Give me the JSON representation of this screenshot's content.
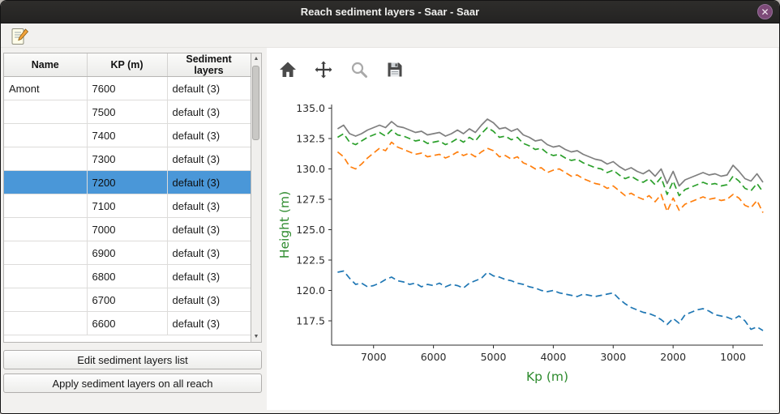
{
  "window": {
    "title": "Reach sediment layers - Saar - Saar",
    "close_glyph": "✕"
  },
  "icons": {
    "edit": "note-pencil",
    "home": "home",
    "pan": "move-arrows",
    "zoom": "magnifier",
    "save": "floppy-disk",
    "scroll_up": "▲",
    "scroll_down": "▼"
  },
  "table": {
    "headers": [
      "Name",
      "KP (m)",
      "Sediment layers"
    ],
    "selected_index": 4,
    "rows": [
      {
        "name": "Amont",
        "kp": "7600",
        "layers": "default (3)"
      },
      {
        "name": "",
        "kp": "7500",
        "layers": "default (3)"
      },
      {
        "name": "",
        "kp": "7400",
        "layers": "default (3)"
      },
      {
        "name": "",
        "kp": "7300",
        "layers": "default (3)"
      },
      {
        "name": "",
        "kp": "7200",
        "layers": "default (3)"
      },
      {
        "name": "",
        "kp": "7100",
        "layers": "default (3)"
      },
      {
        "name": "",
        "kp": "7000",
        "layers": "default (3)"
      },
      {
        "name": "",
        "kp": "6900",
        "layers": "default (3)"
      },
      {
        "name": "",
        "kp": "6800",
        "layers": "default (3)"
      },
      {
        "name": "",
        "kp": "6700",
        "layers": "default (3)"
      },
      {
        "name": "",
        "kp": "6600",
        "layers": "default (3)"
      }
    ]
  },
  "buttons": {
    "edit": "Edit sediment layers list",
    "apply": "Apply sediment layers on all reach"
  },
  "chart_data": {
    "type": "line",
    "title": "",
    "xlabel": "Kp (m)",
    "ylabel": "Height (m)",
    "axis_label_color": "#2e8b2e",
    "tick_color": "#2b2b2b",
    "x_axis_reversed": true,
    "xlim": [
      7700,
      500
    ],
    "ylim": [
      115.5,
      135.3
    ],
    "xticks": [
      7000,
      6000,
      5000,
      4000,
      3000,
      2000,
      1000
    ],
    "yticks": [
      117.5,
      120.0,
      122.5,
      125.0,
      127.5,
      130.0,
      132.5,
      135.0
    ],
    "grid": false,
    "legend": false,
    "x": [
      7600,
      7500,
      7400,
      7300,
      7200,
      7100,
      7000,
      6900,
      6800,
      6700,
      6600,
      6500,
      6400,
      6300,
      6200,
      6100,
      6000,
      5900,
      5800,
      5700,
      5600,
      5500,
      5400,
      5300,
      5200,
      5100,
      5000,
      4900,
      4800,
      4700,
      4600,
      4500,
      4400,
      4300,
      4200,
      4100,
      4000,
      3900,
      3800,
      3700,
      3600,
      3500,
      3400,
      3300,
      3200,
      3100,
      3000,
      2900,
      2800,
      2700,
      2600,
      2500,
      2400,
      2300,
      2200,
      2100,
      2000,
      1900,
      1800,
      1700,
      1600,
      1500,
      1400,
      1300,
      1200,
      1100,
      1000,
      900,
      800,
      700,
      600,
      500
    ],
    "series": [
      {
        "color": "#1f77b4",
        "style": "dashed",
        "values": [
          121.5,
          121.6,
          121.0,
          120.5,
          120.6,
          120.3,
          120.4,
          120.6,
          120.9,
          121.1,
          120.8,
          120.7,
          120.5,
          120.6,
          120.3,
          120.5,
          120.4,
          120.6,
          120.3,
          120.5,
          120.4,
          120.2,
          120.6,
          120.8,
          121.0,
          121.5,
          121.2,
          121.1,
          120.9,
          120.8,
          120.6,
          120.5,
          120.3,
          120.2,
          120.0,
          119.9,
          120.0,
          119.8,
          119.7,
          119.6,
          119.5,
          119.7,
          119.6,
          119.5,
          119.6,
          119.7,
          119.8,
          119.3,
          118.9,
          118.6,
          118.4,
          118.2,
          118.1,
          117.9,
          117.6,
          117.2,
          117.7,
          117.3,
          118.0,
          118.2,
          118.4,
          118.5,
          118.3,
          118.0,
          117.9,
          117.8,
          117.6,
          117.9,
          117.5,
          116.8,
          117.0,
          116.7
        ]
      },
      {
        "color": "#ff7f0e",
        "style": "dashed",
        "values": [
          131.4,
          131.0,
          130.2,
          130.0,
          130.4,
          130.9,
          131.3,
          131.7,
          131.5,
          132.2,
          131.8,
          131.6,
          131.4,
          131.2,
          131.3,
          131.0,
          131.1,
          131.2,
          130.9,
          131.1,
          131.4,
          131.1,
          131.3,
          131.0,
          131.4,
          131.7,
          131.5,
          131.0,
          131.1,
          130.8,
          131.0,
          130.5,
          130.3,
          130.0,
          130.1,
          129.7,
          129.9,
          130.0,
          129.7,
          129.4,
          129.5,
          129.2,
          129.0,
          128.8,
          128.7,
          128.4,
          128.6,
          128.2,
          127.8,
          128.0,
          127.7,
          127.5,
          127.8,
          127.3,
          127.9,
          126.5,
          127.6,
          126.6,
          127.1,
          127.3,
          127.5,
          127.7,
          127.5,
          127.6,
          127.4,
          127.5,
          127.9,
          127.6,
          127.0,
          126.8,
          127.4,
          126.4
        ]
      },
      {
        "color": "#2ca02c",
        "style": "dashed",
        "values": [
          132.6,
          132.9,
          132.2,
          132.0,
          132.3,
          132.6,
          132.8,
          133.0,
          132.7,
          133.2,
          132.8,
          132.7,
          132.5,
          132.3,
          132.4,
          132.1,
          132.2,
          132.3,
          132.0,
          132.2,
          132.5,
          132.2,
          132.6,
          132.3,
          132.9,
          133.4,
          133.1,
          132.6,
          132.7,
          132.4,
          132.6,
          132.1,
          131.9,
          131.6,
          131.7,
          131.3,
          131.1,
          131.2,
          130.9,
          130.7,
          130.8,
          130.5,
          130.3,
          130.1,
          130.0,
          129.7,
          129.9,
          129.5,
          129.2,
          129.4,
          129.1,
          128.9,
          129.2,
          128.7,
          129.3,
          127.9,
          129.0,
          127.8,
          128.3,
          128.5,
          128.7,
          128.9,
          128.7,
          128.8,
          128.6,
          128.7,
          129.4,
          129.0,
          128.4,
          128.2,
          128.8,
          128.1
        ]
      },
      {
        "color": "#7f7f7f",
        "style": "solid",
        "values": [
          133.3,
          133.6,
          132.9,
          132.7,
          132.9,
          133.2,
          133.4,
          133.6,
          133.4,
          133.9,
          133.5,
          133.4,
          133.2,
          133.0,
          133.1,
          132.8,
          132.9,
          133.0,
          132.7,
          132.9,
          133.2,
          132.9,
          133.3,
          133.0,
          133.6,
          134.1,
          133.8,
          133.3,
          133.4,
          133.1,
          133.3,
          132.8,
          132.6,
          132.3,
          132.4,
          132.0,
          131.8,
          131.9,
          131.6,
          131.4,
          131.5,
          131.2,
          131.0,
          130.8,
          130.7,
          130.4,
          130.6,
          130.2,
          129.9,
          130.1,
          129.8,
          129.6,
          129.9,
          129.4,
          130.0,
          128.8,
          129.8,
          128.6,
          129.1,
          129.3,
          129.5,
          129.7,
          129.5,
          129.6,
          129.4,
          129.5,
          130.3,
          129.8,
          129.2,
          129.0,
          129.6,
          128.9
        ]
      }
    ]
  }
}
